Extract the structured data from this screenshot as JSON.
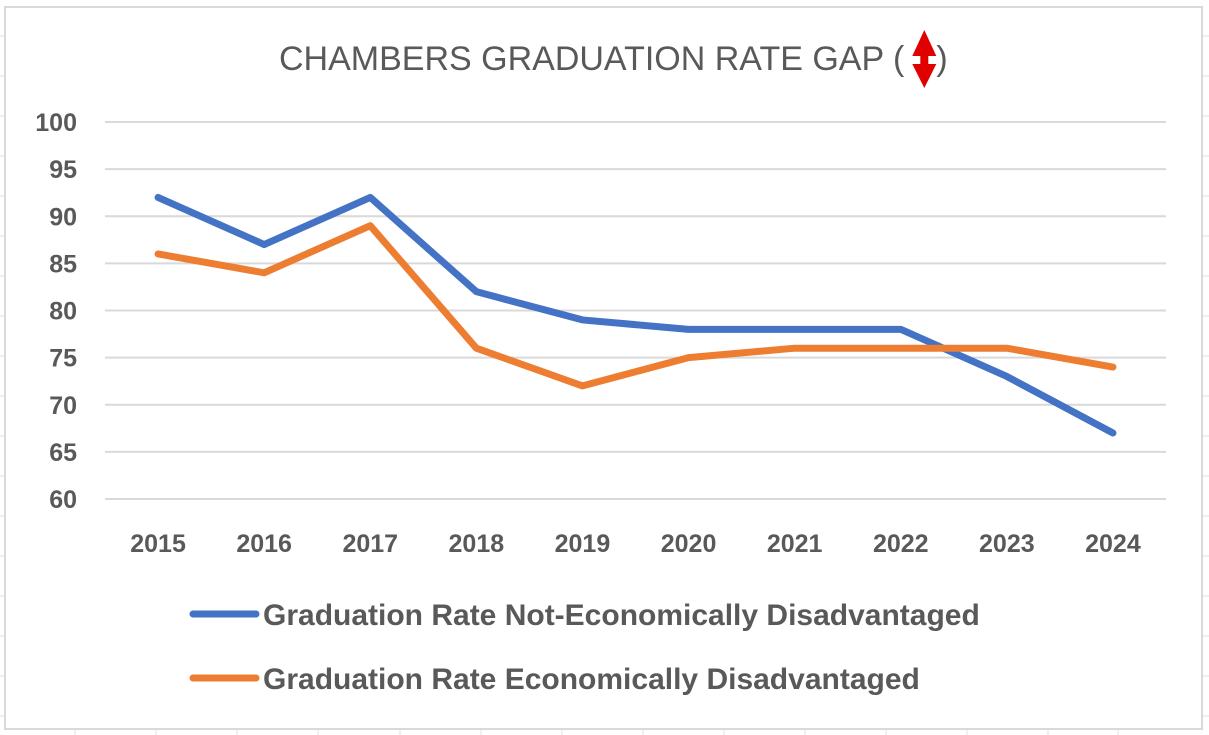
{
  "chart_data": {
    "type": "line",
    "title": "CHAMBERS GRADUATION RATE GAP (",
    "title_suffix": ")",
    "title_icon": "up-down-arrow-icon",
    "xlabel": "",
    "ylabel": "",
    "categories": [
      "2015",
      "2016",
      "2017",
      "2018",
      "2019",
      "2020",
      "2021",
      "2022",
      "2023",
      "2024"
    ],
    "ylim": [
      60,
      100
    ],
    "yticks": [
      60,
      65,
      70,
      75,
      80,
      85,
      90,
      95,
      100
    ],
    "ytick_labels": [
      "60",
      "65",
      "70",
      "75",
      "80",
      "85",
      "90",
      "95",
      "100"
    ],
    "grid": true,
    "legend_position": "bottom",
    "series": [
      {
        "name": "Graduation Rate Not-Economically Disadvantaged",
        "color": "#4472c4",
        "values": [
          92,
          87,
          92,
          82,
          79,
          78,
          78,
          78,
          73,
          67
        ]
      },
      {
        "name": "Graduation Rate Economically Disadvantaged",
        "color": "#ed7d31",
        "values": [
          86,
          84,
          89,
          76,
          72,
          75,
          76,
          76,
          76,
          74
        ]
      }
    ],
    "colors": {
      "text": "#595959",
      "grid": "#d9d9d9",
      "icon": "#e00000"
    }
  }
}
